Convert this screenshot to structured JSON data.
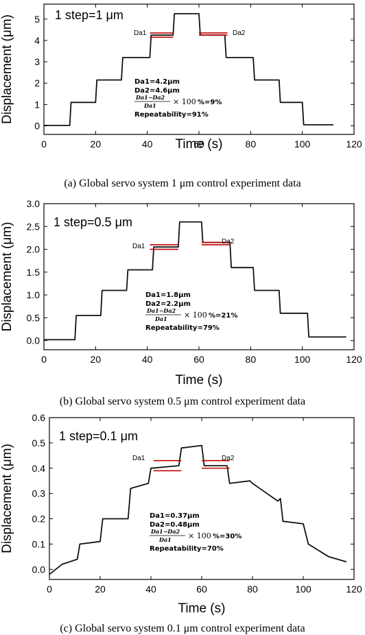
{
  "chart_data": [
    {
      "type": "line",
      "caption": "(a) Global servo system 1 μm control experiment data",
      "xlabel": "Time (s)",
      "ylabel": "Displacement (μm)",
      "xlim": [
        0,
        120
      ],
      "ylim": [
        -0.4,
        5.7
      ],
      "xticks": [
        0,
        20,
        40,
        60,
        80,
        100,
        120
      ],
      "yticks": [
        0,
        1,
        2,
        3,
        4,
        5
      ],
      "ytick_labels": [
        "0",
        "1",
        "2",
        "3",
        "4",
        "5"
      ],
      "step_label": "1 step=1 μm",
      "da_labels": [
        "Da1",
        "Da2"
      ],
      "annotations": [
        "Da1=4.2μm",
        "Da2=4.6μm",
        "%=9%",
        "Repeatability=91%"
      ],
      "reference_lines": [
        {
          "x": [
            41,
            50
          ],
          "y": [
            4.35,
            4.15
          ]
        },
        {
          "x": [
            60,
            71
          ],
          "y": [
            4.35,
            4.25
          ]
        }
      ],
      "series": [
        {
          "values": [
            [
              0,
              0.02
            ],
            [
              10,
              0.02
            ],
            [
              10.5,
              1.1
            ],
            [
              20,
              1.1
            ],
            [
              20.5,
              2.15
            ],
            [
              30,
              2.15
            ],
            [
              30.5,
              3.2
            ],
            [
              41,
              3.2
            ],
            [
              41.5,
              4.25
            ],
            [
              50,
              4.25
            ],
            [
              50.5,
              5.25
            ],
            [
              60,
              5.25
            ],
            [
              60.5,
              4.25
            ],
            [
              70,
              4.25
            ],
            [
              70.5,
              3.2
            ],
            [
              81,
              3.2
            ],
            [
              81.5,
              2.15
            ],
            [
              91,
              2.15
            ],
            [
              91.5,
              1.1
            ],
            [
              100,
              1.1
            ],
            [
              100.5,
              0.05
            ],
            [
              112,
              0.05
            ]
          ]
        }
      ]
    },
    {
      "type": "line",
      "caption": "(b) Global servo system 0.5 μm control experiment data",
      "xlabel": "Time (s)",
      "ylabel": "Displacement (μm)",
      "xlim": [
        0,
        120
      ],
      "ylim": [
        -0.2,
        3.0
      ],
      "xticks": [
        0,
        20,
        40,
        60,
        80,
        100,
        120
      ],
      "yticks": [
        0.0,
        0.5,
        1.0,
        1.5,
        2.0,
        2.5,
        3.0
      ],
      "ytick_labels": [
        "0.0",
        "0.5",
        "1.0",
        "1.5",
        "2.0",
        "2.5",
        "3.0"
      ],
      "step_label": "1 step=0.5 μm",
      "da_labels": [
        "Da1",
        "Da2"
      ],
      "annotations": [
        "Da1=1.8μm",
        "Da2=2.2μm",
        "%=21%",
        "Repeatability=79%"
      ],
      "reference_lines": [
        {
          "x": [
            41,
            52
          ],
          "y": [
            2.1,
            2.0
          ]
        },
        {
          "x": [
            61,
            72
          ],
          "y": [
            2.15,
            2.1
          ]
        }
      ],
      "series": [
        {
          "values": [
            [
              0,
              0.02
            ],
            [
              12,
              0.02
            ],
            [
              12.5,
              0.55
            ],
            [
              22,
              0.55
            ],
            [
              22.5,
              1.1
            ],
            [
              32,
              1.1
            ],
            [
              32.5,
              1.55
            ],
            [
              42,
              1.55
            ],
            [
              42.5,
              2.05
            ],
            [
              52,
              2.05
            ],
            [
              52.5,
              2.6
            ],
            [
              61,
              2.6
            ],
            [
              61.5,
              2.15
            ],
            [
              72,
              2.15
            ],
            [
              72.5,
              1.6
            ],
            [
              81,
              1.6
            ],
            [
              81.5,
              1.1
            ],
            [
              91,
              1.1
            ],
            [
              91.5,
              0.6
            ],
            [
              102,
              0.6
            ],
            [
              102.5,
              0.08
            ],
            [
              117,
              0.08
            ]
          ]
        }
      ]
    },
    {
      "type": "line",
      "caption": "(c) Global servo system 0.1 μm control experiment data",
      "xlabel": "Time (s)",
      "ylabel": "Displacement (μm)",
      "xlim": [
        0,
        120
      ],
      "ylim": [
        -0.04,
        0.6
      ],
      "xticks": [
        0,
        20,
        40,
        60,
        80,
        100,
        120
      ],
      "yticks": [
        0.0,
        0.1,
        0.2,
        0.3,
        0.4,
        0.5,
        0.6
      ],
      "ytick_labels": [
        "0.0",
        "0.1",
        "0.2",
        "0.3",
        "0.4",
        "0.5",
        "0.6"
      ],
      "step_label": "1 step=0.1 μm",
      "da_labels": [
        "Da1",
        "Da2"
      ],
      "annotations": [
        "Da1=0.37μm",
        "Da2=0.48μm",
        "%=30%",
        "Repeatability=70%"
      ],
      "reference_lines": [
        {
          "x": [
            41,
            52
          ],
          "y": [
            0.43,
            0.39
          ]
        },
        {
          "x": [
            60,
            71
          ],
          "y": [
            0.43,
            0.4
          ]
        }
      ],
      "series": [
        {
          "values": [
            [
              0,
              -0.02
            ],
            [
              5,
              0.02
            ],
            [
              11,
              0.04
            ],
            [
              12,
              0.1
            ],
            [
              20,
              0.11
            ],
            [
              21,
              0.2
            ],
            [
              31,
              0.2
            ],
            [
              32,
              0.32
            ],
            [
              39,
              0.34
            ],
            [
              40,
              0.4
            ],
            [
              51,
              0.41
            ],
            [
              52,
              0.48
            ],
            [
              60,
              0.49
            ],
            [
              61,
              0.41
            ],
            [
              70,
              0.41
            ],
            [
              71,
              0.34
            ],
            [
              79,
              0.35
            ],
            [
              80,
              0.34
            ],
            [
              90,
              0.27
            ],
            [
              91,
              0.28
            ],
            [
              92,
              0.19
            ],
            [
              100,
              0.18
            ],
            [
              102,
              0.1
            ],
            [
              110,
              0.05
            ],
            [
              117,
              0.03
            ]
          ]
        }
      ]
    }
  ]
}
